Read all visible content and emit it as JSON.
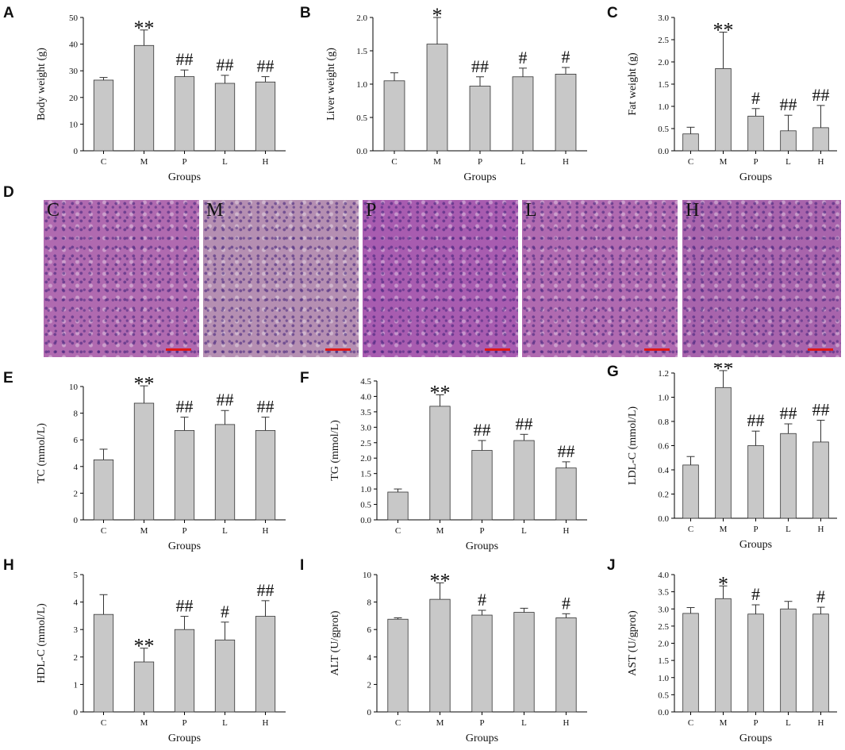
{
  "panels": {
    "A": "A",
    "B": "B",
    "C": "C",
    "D": "D",
    "E": "E",
    "F": "F",
    "G": "G",
    "H": "H",
    "I": "I",
    "J": "J"
  },
  "histology": {
    "labels": [
      "C",
      "M",
      "P",
      "L",
      "H"
    ],
    "colors": [
      "#b06ab0",
      "#b58fb2",
      "#a85cb0",
      "#b06ab0",
      "#a864ac"
    ]
  },
  "colors": {
    "bar": "#c8c8c8",
    "axis": "#000000",
    "scalebar": "#e01818"
  },
  "chart_data": [
    {
      "id": "A",
      "type": "bar",
      "xlabel": "Groups",
      "ylabel": "Body weight (g)",
      "categories": [
        "C",
        "M",
        "P",
        "L",
        "H"
      ],
      "values": [
        26.5,
        39.5,
        27.8,
        25.3,
        25.8
      ],
      "errors": [
        1.0,
        5.8,
        2.5,
        3.0,
        2.0
      ],
      "annotations": [
        "",
        "**",
        "##",
        "##",
        "##"
      ],
      "ylim": [
        0,
        50
      ],
      "yticks": [
        "0",
        "10",
        "20",
        "30",
        "40",
        "50"
      ]
    },
    {
      "id": "B",
      "type": "bar",
      "xlabel": "Groups",
      "ylabel": "Liver weight (g)",
      "categories": [
        "C",
        "M",
        "P",
        "L",
        "H"
      ],
      "values": [
        1.05,
        1.6,
        0.97,
        1.11,
        1.15
      ],
      "errors": [
        0.12,
        0.4,
        0.14,
        0.13,
        0.1
      ],
      "annotations": [
        "",
        "*",
        "##",
        "#",
        "#"
      ],
      "ylim": [
        0,
        2.0
      ],
      "yticks": [
        "0.0",
        "0.5",
        "1.0",
        "1.5",
        "2.0"
      ]
    },
    {
      "id": "C",
      "type": "bar",
      "xlabel": "Groups",
      "ylabel": "Fat weight (g)",
      "categories": [
        "C",
        "M",
        "P",
        "L",
        "H"
      ],
      "values": [
        0.38,
        1.85,
        0.78,
        0.45,
        0.52
      ],
      "errors": [
        0.15,
        0.82,
        0.17,
        0.35,
        0.5
      ],
      "annotations": [
        "",
        "**",
        "#",
        "##",
        "##"
      ],
      "ylim": [
        0,
        3.0
      ],
      "yticks": [
        "0.0",
        "0.5",
        "1.0",
        "1.5",
        "2.0",
        "2.5",
        "3.0"
      ]
    },
    {
      "id": "E",
      "type": "bar",
      "xlabel": "Groups",
      "ylabel": "TC (mmol/L)",
      "categories": [
        "C",
        "M",
        "P",
        "L",
        "H"
      ],
      "values": [
        4.5,
        8.75,
        6.7,
        7.15,
        6.7
      ],
      "errors": [
        0.8,
        1.3,
        1.0,
        1.05,
        1.0
      ],
      "annotations": [
        "",
        "**",
        "##",
        "##",
        "##"
      ],
      "ylim": [
        0,
        10
      ],
      "yticks": [
        "0",
        "2",
        "4",
        "6",
        "8",
        "10"
      ]
    },
    {
      "id": "F",
      "type": "bar",
      "xlabel": "Groups",
      "ylabel": "TG (mmol/L)",
      "categories": [
        "C",
        "M",
        "P",
        "L",
        "H"
      ],
      "values": [
        0.9,
        3.68,
        2.25,
        2.57,
        1.68
      ],
      "errors": [
        0.1,
        0.37,
        0.32,
        0.2,
        0.2
      ],
      "annotations": [
        "",
        "**",
        "##",
        "##",
        "##"
      ],
      "ylim": [
        0,
        4.5
      ],
      "yticks": [
        "0.0",
        "0.5",
        "1.0",
        "1.5",
        "2.0",
        "2.5",
        "3.0",
        "3.5",
        "4.0",
        "4.5"
      ]
    },
    {
      "id": "G",
      "type": "bar",
      "xlabel": "Groups",
      "ylabel": "LDL-C (mmol/L)",
      "categories": [
        "C",
        "M",
        "P",
        "L",
        "H"
      ],
      "values": [
        0.44,
        1.08,
        0.6,
        0.7,
        0.63
      ],
      "errors": [
        0.07,
        0.14,
        0.12,
        0.08,
        0.18
      ],
      "annotations": [
        "",
        "**",
        "##",
        "##",
        "##"
      ],
      "ylim": [
        0,
        1.2
      ],
      "yticks": [
        "0.0",
        "0.2",
        "0.4",
        "0.6",
        "0.8",
        "1.0",
        "1.2"
      ]
    },
    {
      "id": "H",
      "type": "bar",
      "xlabel": "Groups",
      "ylabel": "HDL-C (mmol/L)",
      "categories": [
        "C",
        "M",
        "P",
        "L",
        "H"
      ],
      "values": [
        3.55,
        1.82,
        3.0,
        2.62,
        3.48
      ],
      "errors": [
        0.72,
        0.5,
        0.48,
        0.65,
        0.57
      ],
      "annotations": [
        "",
        "**",
        "##",
        "#",
        "##"
      ],
      "ylim": [
        0,
        5
      ],
      "yticks": [
        "0",
        "1",
        "2",
        "3",
        "4",
        "5"
      ]
    },
    {
      "id": "I",
      "type": "bar",
      "xlabel": "Groups",
      "ylabel": "ALT (U/gprot)",
      "categories": [
        "C",
        "M",
        "P",
        "L",
        "H"
      ],
      "values": [
        6.75,
        8.2,
        7.05,
        7.25,
        6.85
      ],
      "errors": [
        0.1,
        1.2,
        0.35,
        0.3,
        0.3
      ],
      "annotations": [
        "",
        "**",
        "#",
        "",
        "#"
      ],
      "ylim": [
        0,
        10
      ],
      "yticks": [
        "0",
        "2",
        "4",
        "6",
        "8",
        "10"
      ]
    },
    {
      "id": "J",
      "type": "bar",
      "xlabel": "Groups",
      "ylabel": "AST (U/gprot)",
      "categories": [
        "C",
        "M",
        "P",
        "L",
        "H"
      ],
      "values": [
        2.87,
        3.3,
        2.85,
        3.0,
        2.85
      ],
      "errors": [
        0.17,
        0.37,
        0.27,
        0.22,
        0.2
      ],
      "annotations": [
        "",
        "*",
        "#",
        "",
        "#"
      ],
      "ylim": [
        0,
        4.0
      ],
      "yticks": [
        "0.0",
        "0.5",
        "1.0",
        "1.5",
        "2.0",
        "2.5",
        "3.0",
        "3.5",
        "4.0"
      ]
    }
  ]
}
